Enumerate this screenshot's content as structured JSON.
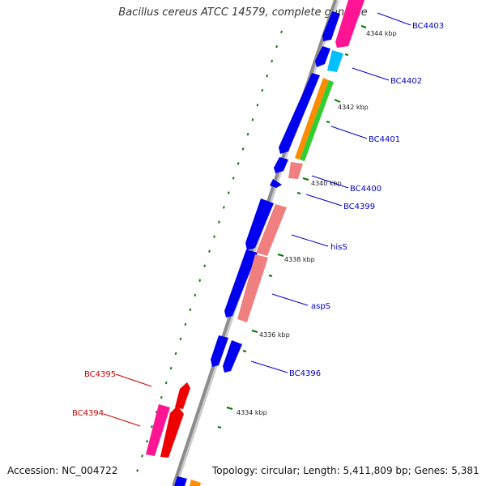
{
  "title": "Bacillus cereus ATCC 14579, complete genome",
  "accession": "Accession: NC_004722",
  "summary": "Topology: circular; Length: 5,411,809 bp; Genes: 5,381",
  "ticks": [
    "4344 kbp",
    "4342 kbp",
    "4340 kbp",
    "4338 kbp",
    "4336 kbp",
    "4334 kbp"
  ],
  "genes": [
    {
      "label": "BC4403",
      "color": "#0000cc"
    },
    {
      "label": "BC4402",
      "color": "#0000cc"
    },
    {
      "label": "BC4401",
      "color": "#0000cc"
    },
    {
      "label": "BC4400",
      "color": "#0000cc"
    },
    {
      "label": "BC4399",
      "color": "#0000cc"
    },
    {
      "label": "hisS",
      "color": "#0000cc"
    },
    {
      "label": "aspS",
      "color": "#0000cc"
    },
    {
      "label": "BC4396",
      "color": "#0000cc"
    },
    {
      "label": "BC4395",
      "color": "#cc0000"
    },
    {
      "label": "BC4394",
      "color": "#cc0000"
    }
  ],
  "colors": {
    "backbone": "#8c8c8c",
    "cds": "#0000ee",
    "cog_magenta": "#ff1493",
    "cog_cyan": "#00bfff",
    "cog_orange": "#ff8c00",
    "cog_green": "#32cd32",
    "cog_salmon": "#f08080",
    "cog_red": "#ee0000",
    "tick": "#007700"
  }
}
